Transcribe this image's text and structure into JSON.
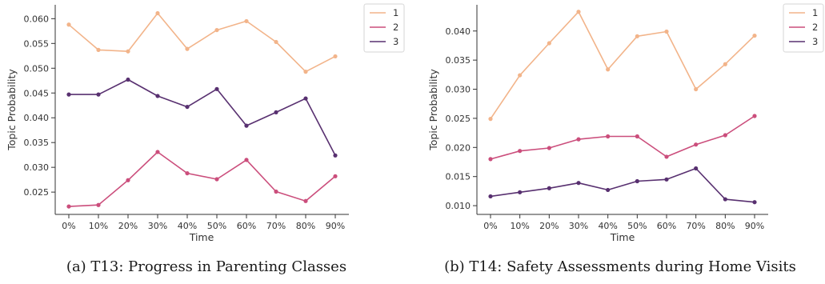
{
  "chart_data": [
    {
      "type": "line",
      "caption": "(a) T13: Progress in Parenting Classes",
      "xlabel": "Time",
      "ylabel": "Topic Probability",
      "categories": [
        "0%",
        "10%",
        "20%",
        "30%",
        "40%",
        "50%",
        "60%",
        "70%",
        "80%",
        "90%"
      ],
      "ylim": [
        0.0205,
        0.0628
      ],
      "yticks": [
        "0.025",
        "0.030",
        "0.035",
        "0.040",
        "0.045",
        "0.050",
        "0.055",
        "0.060"
      ],
      "ytick_values": [
        0.025,
        0.03,
        0.035,
        0.04,
        0.045,
        0.05,
        0.055,
        0.06
      ],
      "legend_position": "top-right",
      "grid": false,
      "series": [
        {
          "name": "1",
          "color": "#F2B48A",
          "values": [
            0.0588,
            0.0537,
            0.0534,
            0.0611,
            0.0539,
            0.0577,
            0.0595,
            0.0553,
            0.0493,
            0.0524
          ]
        },
        {
          "name": "2",
          "color": "#CB4E7C",
          "values": [
            0.0221,
            0.0224,
            0.0274,
            0.0331,
            0.0288,
            0.0276,
            0.0315,
            0.0251,
            0.0232,
            0.0282
          ]
        },
        {
          "name": "3",
          "color": "#583070",
          "values": [
            0.0447,
            0.0447,
            0.0477,
            0.0444,
            0.0422,
            0.0458,
            0.0384,
            0.0411,
            0.0439,
            0.0324
          ]
        }
      ]
    },
    {
      "type": "line",
      "caption": "(b) T14: Safety Assessments during Home Visits",
      "xlabel": "Time",
      "ylabel": "Topic Probability",
      "categories": [
        "0%",
        "10%",
        "20%",
        "30%",
        "40%",
        "50%",
        "60%",
        "70%",
        "80%",
        "90%"
      ],
      "ylim": [
        0.0085,
        0.0445
      ],
      "yticks": [
        "0.010",
        "0.015",
        "0.020",
        "0.025",
        "0.030",
        "0.035",
        "0.040"
      ],
      "ytick_values": [
        0.01,
        0.015,
        0.02,
        0.025,
        0.03,
        0.035,
        0.04
      ],
      "legend_position": "top-right",
      "grid": false,
      "series": [
        {
          "name": "1",
          "color": "#F2B48A",
          "values": [
            0.0249,
            0.0324,
            0.0379,
            0.0433,
            0.0334,
            0.0391,
            0.0399,
            0.03,
            0.0343,
            0.0392
          ]
        },
        {
          "name": "2",
          "color": "#CB4E7C",
          "values": [
            0.018,
            0.0194,
            0.0199,
            0.0214,
            0.0219,
            0.0219,
            0.0184,
            0.0205,
            0.0221,
            0.0254
          ]
        },
        {
          "name": "3",
          "color": "#583070",
          "values": [
            0.0116,
            0.0123,
            0.013,
            0.0139,
            0.0127,
            0.0142,
            0.0145,
            0.0164,
            0.0111,
            0.0106
          ]
        }
      ]
    }
  ]
}
